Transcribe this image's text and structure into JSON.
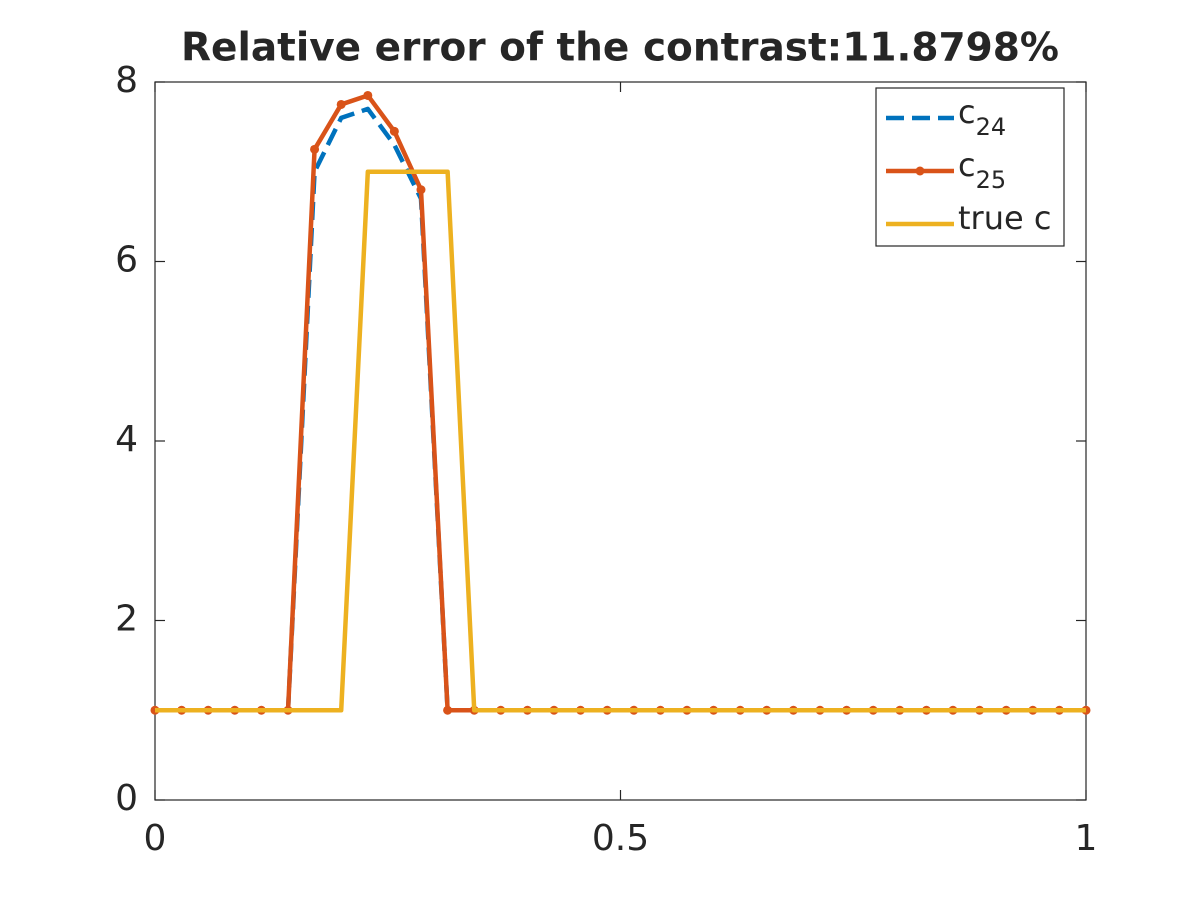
{
  "chart_data": {
    "type": "line",
    "title": "Relative error of the contrast:11.8798%",
    "xlim": [
      0,
      1
    ],
    "ylim": [
      0,
      8
    ],
    "xticks": [
      0,
      0.5,
      1
    ],
    "yticks": [
      0,
      2,
      4,
      6,
      8
    ],
    "legend": "upper right",
    "series": [
      {
        "name": "c",
        "subscript": "24",
        "color": "#0072BD",
        "style": "dashed",
        "marker": false,
        "x": [
          0,
          0.0286,
          0.0571,
          0.0857,
          0.1143,
          0.1429,
          0.1714,
          0.2,
          0.2286,
          0.2571,
          0.2857,
          0.3143,
          0.3429,
          0.3714,
          0.4,
          0.4286,
          0.4571,
          0.4857,
          0.5143,
          0.5429,
          0.5714,
          0.6,
          0.6286,
          0.6571,
          0.6857,
          0.7143,
          0.7429,
          0.7714,
          0.8,
          0.8286,
          0.8571,
          0.8857,
          0.9143,
          0.9429,
          0.9714,
          1
        ],
        "values": [
          1,
          1,
          1,
          1,
          1,
          1,
          7.0,
          7.6,
          7.7,
          7.3,
          6.7,
          1,
          1,
          1,
          1,
          1,
          1,
          1,
          1,
          1,
          1,
          1,
          1,
          1,
          1,
          1,
          1,
          1,
          1,
          1,
          1,
          1,
          1,
          1,
          1,
          1
        ]
      },
      {
        "name": "c",
        "subscript": "25",
        "color": "#D95319",
        "style": "solid",
        "marker": true,
        "x": [
          0,
          0.0286,
          0.0571,
          0.0857,
          0.1143,
          0.1429,
          0.1714,
          0.2,
          0.2286,
          0.2571,
          0.2857,
          0.3143,
          0.3429,
          0.3714,
          0.4,
          0.4286,
          0.4571,
          0.4857,
          0.5143,
          0.5429,
          0.5714,
          0.6,
          0.6286,
          0.6571,
          0.6857,
          0.7143,
          0.7429,
          0.7714,
          0.8,
          0.8286,
          0.8571,
          0.8857,
          0.9143,
          0.9429,
          0.9714,
          1
        ],
        "values": [
          1,
          1,
          1,
          1,
          1,
          1,
          7.25,
          7.75,
          7.85,
          7.45,
          6.8,
          1,
          1,
          1,
          1,
          1,
          1,
          1,
          1,
          1,
          1,
          1,
          1,
          1,
          1,
          1,
          1,
          1,
          1,
          1,
          1,
          1,
          1,
          1,
          1,
          1
        ]
      },
      {
        "name": "true c",
        "color": "#EDB120",
        "style": "solid",
        "marker": false,
        "x": [
          0,
          0.2,
          0.2286,
          0.3143,
          0.3429,
          1
        ],
        "values": [
          1,
          1,
          7,
          7,
          1,
          1
        ]
      }
    ]
  }
}
